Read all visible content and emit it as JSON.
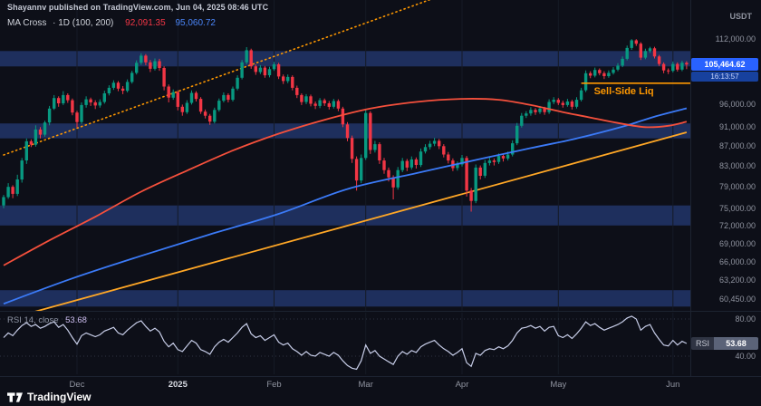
{
  "header": {
    "attribution": "Shayannv published on TradingView.com, Jun 04, 2025 08:46 UTC",
    "currency_label": "USDT"
  },
  "legend": {
    "title": "MA Cross",
    "descriptor": "· 1D (100, 200)",
    "ma100_value": "92,091.35",
    "ma200_value": "95,060.72"
  },
  "footer": {
    "brand": "TradingView"
  },
  "colors": {
    "up": "#089981",
    "down": "#f23645",
    "ma100": "#f5503c",
    "ma200": "#3b7af7",
    "trendline": "#ffa726",
    "dotted_trendline": "#ff9800",
    "zone_fill": "rgba(58,101,208,0.38)",
    "badge_bg": "#2962ff",
    "countdown_bg": "#17419e",
    "rsi_line": "#c7cde8",
    "sell_side": "#ff9800",
    "legend_ma100": "#f23645",
    "legend_ma200": "#4a85f8"
  },
  "chart_data": {
    "type": "candlestick",
    "scale": "log",
    "units": "thousand USDT",
    "ylim_price_pane": [
      58.8,
      122.9
    ],
    "ylim_rsi_pane": [
      20.5,
      86.8
    ],
    "price_axis_ticks": [
      {
        "v": 112.0,
        "label": "112,000.00"
      },
      {
        "v": 96.0,
        "label": "96,000.00"
      },
      {
        "v": 91.0,
        "label": "91,000.00"
      },
      {
        "v": 87.0,
        "label": "87,000.00"
      },
      {
        "v": 83.0,
        "label": "83,000.00"
      },
      {
        "v": 79.0,
        "label": "79,000.00"
      },
      {
        "v": 75.0,
        "label": "75,000.00"
      },
      {
        "v": 72.0,
        "label": "72,000.00"
      },
      {
        "v": 69.0,
        "label": "69,000.00"
      },
      {
        "v": 66.0,
        "label": "66,000.00"
      },
      {
        "v": 63.2,
        "label": "63,200.00"
      },
      {
        "v": 60.45,
        "label": "60,450.00"
      }
    ],
    "x_ticks": [
      {
        "label": "Dec",
        "i": 16
      },
      {
        "label": "2025",
        "i": 38,
        "year": true
      },
      {
        "label": "Feb",
        "i": 59
      },
      {
        "label": "Mar",
        "i": 79
      },
      {
        "label": "Apr",
        "i": 100
      },
      {
        "label": "May",
        "i": 121
      },
      {
        "label": "Jun",
        "i": 146
      }
    ],
    "last": {
      "price": 105.46,
      "price_label": "105,464.62",
      "countdown": "16:13:57"
    },
    "zones": [
      [
        105.0,
        108.9
      ],
      [
        88.5,
        91.7
      ],
      [
        72.0,
        75.5
      ],
      [
        59.4,
        61.75
      ]
    ],
    "sell_side_liq": {
      "label": "Sell-Side Liq",
      "price": 100.9,
      "from_index": 126
    },
    "trendline": {
      "points": [
        [
          0,
          57.5
        ],
        [
          149,
          89.8
        ]
      ],
      "style": "solid"
    },
    "dotted_trendline": {
      "points": [
        [
          0,
          85.1
        ],
        [
          93,
          123.0
        ]
      ],
      "style": "dotted"
    },
    "series": [
      {
        "name": "MA 100",
        "last_value": 92.09,
        "points": [
          [
            0,
            65.5
          ],
          [
            10,
            69.5
          ],
          [
            20,
            73.5
          ],
          [
            30,
            78.0
          ],
          [
            40,
            82.0
          ],
          [
            50,
            86.0
          ],
          [
            60,
            89.5
          ],
          [
            70,
            92.5
          ],
          [
            80,
            95.0
          ],
          [
            90,
            96.5
          ],
          [
            100,
            97.2
          ],
          [
            108,
            97.0
          ],
          [
            115,
            95.8
          ],
          [
            122,
            94.2
          ],
          [
            128,
            93.0
          ],
          [
            134,
            91.8
          ],
          [
            140,
            90.9
          ],
          [
            145,
            91.2
          ],
          [
            149,
            92.09
          ]
        ]
      },
      {
        "name": "MA 200",
        "last_value": 95.06,
        "points": [
          [
            0,
            59.8
          ],
          [
            15,
            63.5
          ],
          [
            30,
            67.0
          ],
          [
            45,
            70.5
          ],
          [
            60,
            74.0
          ],
          [
            75,
            78.5
          ],
          [
            90,
            81.5
          ],
          [
            105,
            84.5
          ],
          [
            115,
            86.5
          ],
          [
            125,
            88.5
          ],
          [
            135,
            91.0
          ],
          [
            142,
            93.2
          ],
          [
            149,
            95.06
          ]
        ]
      }
    ],
    "candles": [
      [
        75.5,
        77.4,
        75.0,
        77.0
      ],
      [
        77.0,
        79.6,
        76.7,
        78.9
      ],
      [
        78.9,
        79.2,
        76.8,
        77.6
      ],
      [
        77.6,
        81.2,
        77.2,
        80.3
      ],
      [
        80.3,
        84.5,
        79.7,
        84.0
      ],
      [
        84.0,
        88.5,
        83.3,
        87.9
      ],
      [
        87.9,
        88.3,
        86.7,
        87.2
      ],
      [
        87.2,
        91.3,
        86.8,
        90.4
      ],
      [
        90.4,
        90.9,
        88.5,
        89.3
      ],
      [
        89.3,
        92.3,
        88.9,
        91.9
      ],
      [
        91.9,
        95.6,
        91.3,
        95.0
      ],
      [
        95.0,
        98.1,
        94.7,
        97.4
      ],
      [
        97.4,
        97.8,
        95.4,
        96.2
      ],
      [
        96.2,
        99.0,
        95.8,
        98.1
      ],
      [
        98.1,
        98.5,
        96.3,
        96.9
      ],
      [
        96.9,
        97.3,
        93.5,
        94.1
      ],
      [
        94.1,
        94.5,
        90.8,
        92.0
      ],
      [
        92.0,
        96.4,
        91.6,
        95.8
      ],
      [
        95.8,
        97.8,
        95.2,
        97.1
      ],
      [
        97.1,
        97.5,
        95.6,
        96.4
      ],
      [
        96.4,
        96.9,
        94.9,
        95.7
      ],
      [
        95.7,
        97.1,
        95.2,
        96.5
      ],
      [
        96.5,
        99.1,
        96.1,
        98.5
      ],
      [
        98.5,
        100.4,
        98.0,
        99.8
      ],
      [
        99.8,
        101.6,
        99.3,
        101.0
      ],
      [
        101.0,
        101.4,
        99.0,
        99.6
      ],
      [
        99.6,
        100.2,
        98.3,
        99.1
      ],
      [
        99.1,
        101.8,
        98.7,
        101.2
      ],
      [
        101.2,
        103.9,
        100.8,
        103.4
      ],
      [
        103.4,
        106.5,
        103.0,
        105.9
      ],
      [
        105.9,
        108.3,
        105.4,
        107.7
      ],
      [
        107.7,
        108.1,
        105.3,
        106.0
      ],
      [
        106.0,
        106.6,
        103.6,
        104.4
      ],
      [
        104.4,
        107.0,
        104.0,
        106.3
      ],
      [
        106.3,
        106.9,
        103.9,
        104.6
      ],
      [
        104.6,
        105.0,
        99.2,
        100.1
      ],
      [
        100.1,
        100.6,
        96.4,
        97.5
      ],
      [
        97.5,
        99.4,
        97.0,
        98.8
      ],
      [
        98.8,
        99.2,
        94.6,
        95.4
      ],
      [
        95.4,
        95.9,
        93.4,
        94.2
      ],
      [
        94.2,
        96.9,
        93.8,
        96.3
      ],
      [
        96.3,
        99.2,
        95.9,
        98.6
      ],
      [
        98.6,
        99.0,
        96.6,
        97.2
      ],
      [
        97.2,
        97.6,
        93.8,
        94.3
      ],
      [
        94.3,
        94.8,
        92.8,
        93.4
      ],
      [
        93.4,
        93.8,
        91.4,
        92.1
      ],
      [
        92.1,
        95.2,
        91.7,
        94.7
      ],
      [
        94.7,
        97.3,
        94.3,
        96.8
      ],
      [
        96.8,
        98.7,
        96.4,
        98.1
      ],
      [
        98.1,
        98.5,
        96.4,
        97.0
      ],
      [
        97.0,
        100.1,
        96.6,
        99.6
      ],
      [
        99.6,
        102.8,
        99.2,
        102.2
      ],
      [
        102.2,
        106.6,
        101.8,
        106.0
      ],
      [
        106.0,
        109.9,
        105.5,
        109.1
      ],
      [
        109.1,
        109.5,
        104.4,
        105.0
      ],
      [
        105.0,
        105.5,
        102.9,
        103.6
      ],
      [
        103.6,
        105.3,
        103.1,
        104.7
      ],
      [
        104.7,
        105.1,
        102.2,
        102.8
      ],
      [
        102.8,
        104.9,
        102.3,
        104.3
      ],
      [
        104.3,
        106.1,
        103.9,
        105.5
      ],
      [
        105.5,
        105.9,
        101.9,
        102.5
      ],
      [
        102.5,
        103.0,
        100.7,
        101.4
      ],
      [
        101.4,
        103.0,
        100.9,
        102.4
      ],
      [
        102.4,
        102.8,
        99.2,
        99.8
      ],
      [
        99.8,
        100.3,
        97.4,
        98.1
      ],
      [
        98.1,
        98.5,
        95.8,
        96.5
      ],
      [
        96.5,
        98.3,
        96.0,
        97.8
      ],
      [
        97.8,
        98.2,
        95.5,
        96.1
      ],
      [
        96.1,
        96.6,
        94.9,
        95.6
      ],
      [
        95.6,
        97.4,
        95.1,
        96.9
      ],
      [
        96.9,
        97.3,
        95.6,
        96.2
      ],
      [
        96.2,
        96.7,
        94.8,
        95.4
      ],
      [
        95.4,
        97.2,
        95.0,
        96.7
      ],
      [
        96.7,
        97.1,
        94.4,
        95.0
      ],
      [
        95.0,
        95.4,
        90.9,
        91.5
      ],
      [
        91.5,
        92.0,
        87.9,
        88.6
      ],
      [
        88.6,
        89.1,
        83.5,
        84.3
      ],
      [
        84.3,
        84.8,
        78.2,
        80.1
      ],
      [
        80.1,
        85.2,
        79.6,
        84.5
      ],
      [
        84.5,
        94.9,
        84.1,
        94.0
      ],
      [
        94.0,
        94.4,
        85.3,
        86.1
      ],
      [
        86.1,
        88.0,
        85.6,
        87.3
      ],
      [
        87.3,
        87.7,
        83.3,
        84.0
      ],
      [
        84.0,
        84.5,
        81.4,
        82.1
      ],
      [
        82.1,
        82.6,
        79.9,
        80.7
      ],
      [
        80.7,
        81.1,
        76.6,
        78.8
      ],
      [
        78.8,
        82.7,
        78.4,
        82.1
      ],
      [
        82.1,
        84.5,
        81.7,
        83.9
      ],
      [
        83.9,
        84.3,
        81.9,
        82.6
      ],
      [
        82.6,
        84.8,
        82.2,
        84.2
      ],
      [
        84.2,
        84.6,
        82.4,
        83.1
      ],
      [
        83.1,
        86.4,
        82.7,
        85.8
      ],
      [
        85.8,
        87.3,
        85.4,
        86.7
      ],
      [
        86.7,
        88.0,
        86.2,
        87.4
      ],
      [
        87.4,
        88.6,
        86.9,
        88.0
      ],
      [
        88.0,
        88.4,
        86.3,
        86.9
      ],
      [
        86.9,
        87.3,
        84.6,
        85.2
      ],
      [
        85.2,
        85.7,
        83.4,
        84.0
      ],
      [
        84.0,
        84.4,
        81.9,
        82.5
      ],
      [
        82.5,
        83.8,
        82.0,
        83.2
      ],
      [
        83.2,
        85.1,
        82.8,
        84.5
      ],
      [
        84.5,
        84.9,
        77.1,
        78.2
      ],
      [
        78.2,
        78.7,
        74.4,
        76.3
      ],
      [
        76.3,
        83.2,
        75.9,
        82.6
      ],
      [
        82.6,
        83.0,
        80.3,
        81.0
      ],
      [
        81.0,
        84.1,
        80.6,
        83.5
      ],
      [
        83.5,
        84.6,
        83.0,
        84.0
      ],
      [
        84.0,
        84.4,
        83.0,
        83.7
      ],
      [
        83.7,
        85.4,
        83.3,
        84.9
      ],
      [
        84.9,
        85.3,
        83.8,
        84.4
      ],
      [
        84.4,
        85.8,
        84.0,
        85.2
      ],
      [
        85.2,
        88.1,
        84.8,
        87.5
      ],
      [
        87.5,
        91.8,
        87.1,
        91.2
      ],
      [
        91.2,
        94.0,
        90.8,
        93.4
      ],
      [
        93.4,
        94.4,
        92.9,
        93.9
      ],
      [
        93.9,
        95.3,
        93.4,
        94.7
      ],
      [
        94.7,
        95.1,
        93.6,
        94.2
      ],
      [
        94.2,
        95.6,
        93.8,
        95.0
      ],
      [
        95.0,
        95.4,
        93.6,
        94.2
      ],
      [
        94.2,
        97.1,
        93.8,
        96.5
      ],
      [
        96.5,
        97.6,
        96.0,
        97.0
      ],
      [
        97.0,
        97.4,
        95.8,
        96.3
      ],
      [
        96.3,
        96.8,
        95.2,
        95.8
      ],
      [
        95.8,
        97.2,
        95.4,
        96.6
      ],
      [
        96.6,
        97.0,
        94.8,
        95.4
      ],
      [
        95.4,
        97.6,
        95.0,
        97.0
      ],
      [
        97.0,
        99.8,
        96.6,
        99.2
      ],
      [
        99.2,
        104.0,
        98.8,
        103.3
      ],
      [
        103.3,
        103.8,
        102.1,
        102.7
      ],
      [
        102.7,
        104.7,
        102.3,
        104.1
      ],
      [
        104.1,
        104.5,
        102.8,
        103.3
      ],
      [
        103.3,
        103.8,
        101.9,
        102.6
      ],
      [
        102.6,
        104.0,
        102.2,
        103.4
      ],
      [
        103.4,
        104.8,
        103.0,
        104.2
      ],
      [
        104.2,
        105.8,
        103.8,
        105.2
      ],
      [
        105.2,
        107.5,
        104.8,
        106.9
      ],
      [
        106.9,
        110.3,
        106.5,
        109.7
      ],
      [
        109.7,
        112.0,
        109.2,
        111.7
      ],
      [
        111.7,
        112.0,
        110.2,
        110.8
      ],
      [
        110.8,
        111.2,
        106.6,
        107.2
      ],
      [
        107.2,
        109.5,
        106.8,
        108.9
      ],
      [
        108.9,
        110.0,
        108.4,
        109.6
      ],
      [
        109.6,
        110.0,
        107.0,
        107.5
      ],
      [
        107.5,
        107.9,
        105.1,
        105.6
      ],
      [
        105.6,
        106.0,
        103.3,
        104.0
      ],
      [
        104.0,
        104.5,
        103.1,
        103.9
      ],
      [
        103.9,
        106.2,
        103.5,
        105.6
      ],
      [
        105.6,
        106.0,
        103.7,
        104.2
      ],
      [
        104.2,
        106.4,
        103.8,
        105.9
      ],
      [
        105.9,
        106.3,
        104.3,
        105.46
      ]
    ],
    "rsi": {
      "legend_label": "RSI 14, close",
      "badge_label": "RSI",
      "last": 53.68,
      "last_label": "53.68",
      "axis_ticks": [
        {
          "v": 80,
          "label": "80.00"
        },
        {
          "v": 40,
          "label": "40.00"
        }
      ],
      "values": [
        60,
        65,
        62,
        68,
        73,
        76,
        72,
        74,
        70,
        72,
        75,
        77,
        71,
        74,
        68,
        60,
        53,
        62,
        65,
        63,
        61,
        63,
        67,
        69,
        71,
        65,
        63,
        68,
        72,
        76,
        78,
        72,
        67,
        70,
        66,
        56,
        50,
        54,
        47,
        45,
        51,
        57,
        54,
        47,
        45,
        42,
        50,
        55,
        58,
        55,
        60,
        65,
        71,
        75,
        64,
        60,
        62,
        57,
        60,
        63,
        55,
        52,
        54,
        48,
        45,
        41,
        45,
        41,
        40,
        44,
        42,
        40,
        44,
        41,
        35,
        30,
        27,
        26,
        35,
        52,
        43,
        46,
        40,
        37,
        34,
        31,
        40,
        45,
        42,
        46,
        44,
        50,
        53,
        55,
        57,
        52,
        48,
        45,
        41,
        44,
        48,
        33,
        29,
        43,
        41,
        46,
        48,
        47,
        50,
        48,
        51,
        57,
        65,
        70,
        71,
        73,
        70,
        72,
        67,
        71,
        72,
        62,
        60,
        63,
        59,
        64,
        70,
        77,
        73,
        75,
        71,
        68,
        70,
        72,
        74,
        77,
        81,
        83,
        80,
        68,
        72,
        74,
        65,
        58,
        52,
        51,
        57,
        52,
        56,
        53.68
      ]
    }
  }
}
